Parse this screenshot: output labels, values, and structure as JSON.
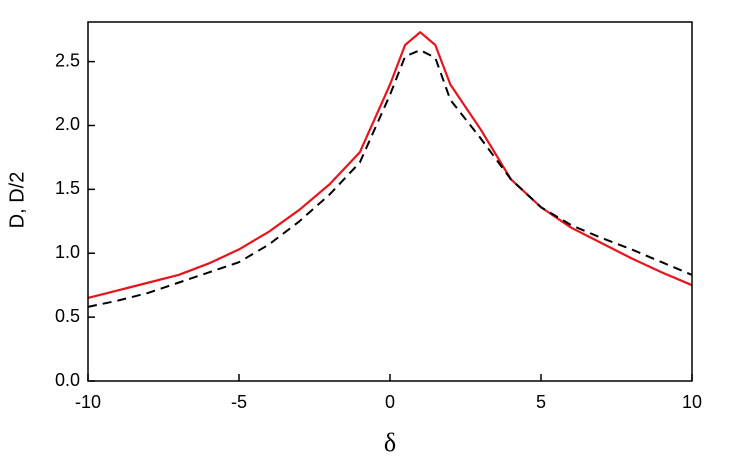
{
  "chart_data": {
    "type": "line",
    "xlabel": "δ",
    "ylabel": "D, D/2",
    "x": [
      -10,
      -9,
      -8,
      -7,
      -6,
      -5,
      -4,
      -3,
      -2,
      -1,
      0,
      0.5,
      1,
      1.5,
      2,
      3,
      4,
      5,
      6,
      7,
      8,
      9,
      10
    ],
    "series": [
      {
        "color": "#e8141c",
        "dash": false,
        "values": [
          0.65,
          0.71,
          0.77,
          0.83,
          0.92,
          1.03,
          1.17,
          1.34,
          1.54,
          1.79,
          2.32,
          2.63,
          2.73,
          2.63,
          2.32,
          1.97,
          1.58,
          1.36,
          1.2,
          1.08,
          0.96,
          0.85,
          0.75
        ]
      },
      {
        "color": "#000000",
        "dash": true,
        "values": [
          0.58,
          0.63,
          0.69,
          0.77,
          0.85,
          0.93,
          1.07,
          1.25,
          1.46,
          1.71,
          2.24,
          2.54,
          2.59,
          2.53,
          2.2,
          1.9,
          1.58,
          1.36,
          1.22,
          1.12,
          1.03,
          0.93,
          0.83
        ]
      }
    ],
    "xlim": [
      -10,
      10
    ],
    "xticks": [
      -10,
      -5,
      0,
      5,
      10
    ],
    "ylim": [
      0,
      2.81
    ],
    "yticks": [
      {
        "value": 0,
        "label": "0.0"
      },
      0.5,
      {
        "value": 1,
        "label": "1.0"
      },
      1.5,
      {
        "value": 2,
        "label": "2.0"
      },
      2.5
    ]
  }
}
